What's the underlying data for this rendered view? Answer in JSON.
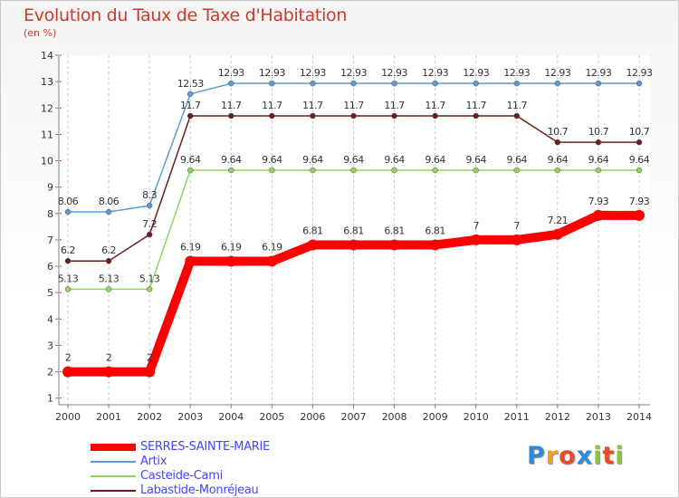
{
  "chart_data": {
    "type": "line",
    "title": "Evolution du Taux de Taxe d'Habitation",
    "subtitle": "(en %)",
    "x": [
      2000,
      2001,
      2002,
      2003,
      2004,
      2005,
      2006,
      2007,
      2008,
      2009,
      2010,
      2011,
      2012,
      2013,
      2014
    ],
    "ylim": [
      1,
      14
    ],
    "yticks": [
      1,
      2,
      3,
      4,
      5,
      6,
      7,
      8,
      9,
      10,
      11,
      12,
      13,
      14
    ],
    "grid": "vertical dashed",
    "legend_position": "bottom-left",
    "series": [
      {
        "name": "SERRES-SAINTE-MARIE",
        "color": "#ff0000",
        "values": [
          2,
          2,
          2,
          6.19,
          6.19,
          6.19,
          6.81,
          6.81,
          6.81,
          6.81,
          7,
          7,
          7.21,
          7.93,
          7.93
        ],
        "labels": [
          "2",
          "2",
          "2",
          "6.19",
          "6.19",
          "6.19",
          "6.81",
          "6.81",
          "6.81",
          "6.81",
          "7",
          "7",
          "7.21",
          "7.93",
          "7.93"
        ]
      },
      {
        "name": "Artix",
        "color": "#5b9bd5",
        "values": [
          8.06,
          8.06,
          8.3,
          12.53,
          12.93,
          12.93,
          12.93,
          12.93,
          12.93,
          12.93,
          12.93,
          12.93,
          12.93,
          12.93,
          12.93
        ],
        "labels": [
          "8.06",
          "8.06",
          "8.3",
          "12.53",
          "12.93",
          "12.93",
          "12.93",
          "12.93",
          "12.93",
          "12.93",
          "12.93",
          "12.93",
          "12.93",
          "12.93",
          "12.93"
        ]
      },
      {
        "name": "Casteide-Cami",
        "color": "#8fd65a",
        "values": [
          5.13,
          5.13,
          5.13,
          9.64,
          9.64,
          9.64,
          9.64,
          9.64,
          9.64,
          9.64,
          9.64,
          9.64,
          9.64,
          9.64,
          9.64
        ],
        "labels": [
          "5.13",
          "5.13",
          "5.13",
          "9.64",
          "9.64",
          "9.64",
          "9.64",
          "9.64",
          "9.64",
          "9.64",
          "9.64",
          "9.64",
          "9.64",
          "9.64",
          "9.64"
        ]
      },
      {
        "name": "Labastide-Monréjeau",
        "color": "#6b1d1d",
        "values": [
          6.2,
          6.2,
          7.2,
          11.7,
          11.7,
          11.7,
          11.7,
          11.7,
          11.7,
          11.7,
          11.7,
          11.7,
          10.7,
          10.7,
          10.7
        ],
        "labels": [
          "6.2",
          "6.2",
          "7.2",
          "11.7",
          "11.7",
          "11.7",
          "11.7",
          "11.7",
          "11.7",
          "11.7",
          "11.7",
          "11.7",
          "10.7",
          "10.7",
          "10.7"
        ]
      }
    ]
  },
  "logo": {
    "letters": [
      "P",
      "r",
      "o",
      "x",
      "i",
      "t",
      "i"
    ],
    "colors": [
      "#2e8bd6",
      "#f0a020",
      "#e84a2a",
      "#2e8bd6",
      "#8cc63f",
      "#e84a2a",
      "#8cc63f"
    ]
  }
}
